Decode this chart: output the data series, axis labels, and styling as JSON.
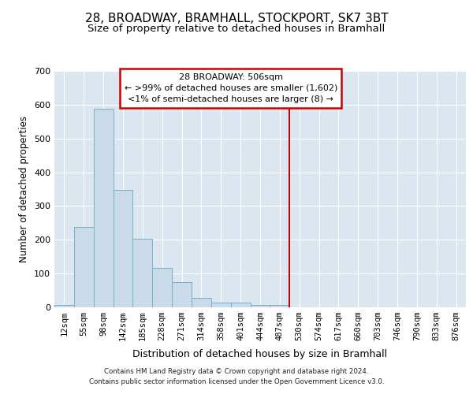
{
  "title": "28, BROADWAY, BRAMHALL, STOCKPORT, SK7 3BT",
  "subtitle": "Size of property relative to detached houses in Bramhall",
  "xlabel": "Distribution of detached houses by size in Bramhall",
  "ylabel": "Number of detached properties",
  "bar_labels": [
    "12sqm",
    "55sqm",
    "98sqm",
    "142sqm",
    "185sqm",
    "228sqm",
    "271sqm",
    "314sqm",
    "358sqm",
    "401sqm",
    "444sqm",
    "487sqm",
    "530sqm",
    "574sqm",
    "617sqm",
    "660sqm",
    "703sqm",
    "746sqm",
    "790sqm",
    "833sqm",
    "876sqm"
  ],
  "bar_values": [
    7,
    237,
    588,
    347,
    204,
    117,
    74,
    27,
    15,
    15,
    7,
    7,
    0,
    0,
    0,
    0,
    0,
    0,
    0,
    0,
    0
  ],
  "bar_color": "#c9daea",
  "bar_edgecolor": "#7aaec8",
  "vline_index": 11.5,
  "vline_color": "#cc0000",
  "annotation_text": "28 BROADWAY: 506sqm\n← >99% of detached houses are smaller (1,602)\n<1% of semi-detached houses are larger (8) →",
  "annotation_box_edgecolor": "#cc0000",
  "annotation_box_facecolor": "#ffffff",
  "ylim": [
    0,
    700
  ],
  "yticks": [
    0,
    100,
    200,
    300,
    400,
    500,
    600,
    700
  ],
  "bg_color": "#dce6f0",
  "footer_line1": "Contains HM Land Registry data © Crown copyright and database right 2024.",
  "footer_line2": "Contains public sector information licensed under the Open Government Licence v3.0.",
  "title_fontsize": 11,
  "subtitle_fontsize": 9.5,
  "tick_fontsize": 7.5,
  "ylabel_fontsize": 8.5,
  "xlabel_fontsize": 9,
  "annotation_fontsize": 8
}
